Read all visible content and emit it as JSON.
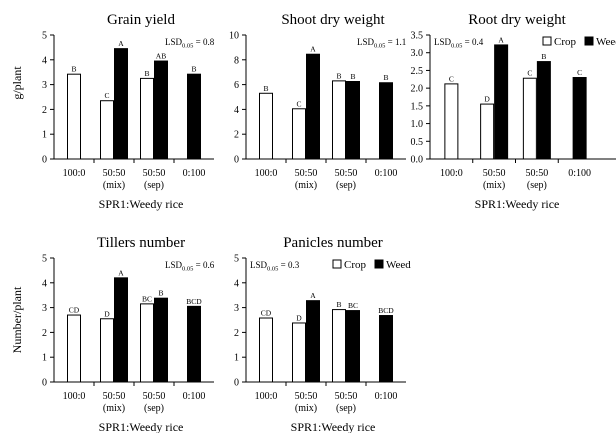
{
  "figure": {
    "ylabel_top": "g/plant",
    "ylabel_bottom": "Number/plant"
  },
  "legend": {
    "crop": "Crop",
    "weed": "Weed"
  },
  "chart_data": [
    {
      "type": "bar",
      "title": "Grain yield",
      "xlabel": "SPR1:Weedy rice",
      "ylabel": "g/plant",
      "ylim": [
        0,
        5
      ],
      "yticks": [
        0,
        1,
        2,
        3,
        4,
        5
      ],
      "categories": [
        [
          "100:0"
        ],
        [
          "50:50",
          "(mix)"
        ],
        [
          "50:50",
          "(sep)"
        ],
        [
          "0:100"
        ]
      ],
      "series": [
        {
          "name": "Crop",
          "values": [
            3.42,
            2.35,
            3.25,
            null
          ],
          "labels": [
            "B",
            "C",
            "B",
            ""
          ]
        },
        {
          "name": "Weed",
          "values": [
            null,
            4.45,
            3.95,
            3.42
          ],
          "labels": [
            "",
            "A",
            "AB",
            "B"
          ]
        }
      ],
      "lsd": {
        "prefix": "LSD",
        "sub": "0.05",
        "value": "= 0.8"
      },
      "legend": false
    },
    {
      "type": "bar",
      "title": "Shoot dry weight",
      "xlabel": "",
      "ylabel": "",
      "ylim": [
        0,
        10
      ],
      "yticks": [
        0,
        2,
        4,
        6,
        8,
        10
      ],
      "categories": [
        [
          "100:0"
        ],
        [
          "50:50",
          "(mix)"
        ],
        [
          "50:50",
          "(sep)"
        ],
        [
          "0:100"
        ]
      ],
      "series": [
        {
          "name": "Crop",
          "values": [
            5.3,
            4.05,
            6.3,
            null
          ],
          "labels": [
            "B",
            "C",
            "B",
            ""
          ]
        },
        {
          "name": "Weed",
          "values": [
            null,
            8.45,
            6.25,
            6.15
          ],
          "labels": [
            "",
            "A",
            "B",
            "B"
          ]
        }
      ],
      "lsd": {
        "prefix": "LSD",
        "sub": "0.05",
        "value": "= 1.1"
      },
      "legend": false
    },
    {
      "type": "bar",
      "title": "Root dry weight",
      "xlabel": "SPR1:Weedy rice",
      "ylabel": "",
      "ylim": [
        0,
        3.5
      ],
      "yticks": [
        0,
        0.5,
        1.0,
        1.5,
        2.0,
        2.5,
        3.0,
        3.5
      ],
      "categories": [
        [
          "100:0"
        ],
        [
          "50:50",
          "(mix)"
        ],
        [
          "50:50",
          "(sep)"
        ],
        [
          "0:100"
        ]
      ],
      "series": [
        {
          "name": "Crop",
          "values": [
            2.12,
            1.55,
            2.28,
            null
          ],
          "labels": [
            "C",
            "D",
            "C",
            ""
          ]
        },
        {
          "name": "Weed",
          "values": [
            null,
            3.22,
            2.75,
            2.3
          ],
          "labels": [
            "",
            "A",
            "B",
            "C"
          ]
        }
      ],
      "lsd": {
        "prefix": "LSD",
        "sub": "0.05",
        "value": "= 0.4"
      },
      "legend": true
    },
    {
      "type": "bar",
      "title": "Tillers number",
      "xlabel": "SPR1:Weedy rice",
      "ylabel": "Number/plant",
      "ylim": [
        0,
        5
      ],
      "yticks": [
        0,
        1,
        2,
        3,
        4,
        5
      ],
      "categories": [
        [
          "100:0"
        ],
        [
          "50:50",
          "(mix)"
        ],
        [
          "50:50",
          "(sep)"
        ],
        [
          "0:100"
        ]
      ],
      "series": [
        {
          "name": "Crop",
          "values": [
            2.7,
            2.55,
            3.15,
            null
          ],
          "labels": [
            "CD",
            "D",
            "BC",
            ""
          ]
        },
        {
          "name": "Weed",
          "values": [
            null,
            4.2,
            3.38,
            3.05
          ],
          "labels": [
            "",
            "A",
            "B",
            "BCD"
          ]
        }
      ],
      "lsd": {
        "prefix": "LSD",
        "sub": "0.05",
        "value": "= 0.6"
      },
      "legend": false
    },
    {
      "type": "bar",
      "title": "Panicles number",
      "xlabel": "SPR1:Weedy rice",
      "ylabel": "",
      "ylim": [
        0,
        5
      ],
      "yticks": [
        0,
        1,
        2,
        3,
        4,
        5
      ],
      "categories": [
        [
          "100:0"
        ],
        [
          "50:50",
          "(mix)"
        ],
        [
          "50:50",
          "(sep)"
        ],
        [
          "0:100"
        ]
      ],
      "series": [
        {
          "name": "Crop",
          "values": [
            2.58,
            2.38,
            2.92,
            null
          ],
          "labels": [
            "CD",
            "D",
            "B",
            ""
          ]
        },
        {
          "name": "Weed",
          "values": [
            null,
            3.28,
            2.88,
            2.68
          ],
          "labels": [
            "",
            "A",
            "BC",
            "BCD"
          ]
        }
      ],
      "lsd": {
        "prefix": "LSD",
        "sub": "0.05",
        "value": "= 0.3"
      },
      "legend": true
    }
  ]
}
